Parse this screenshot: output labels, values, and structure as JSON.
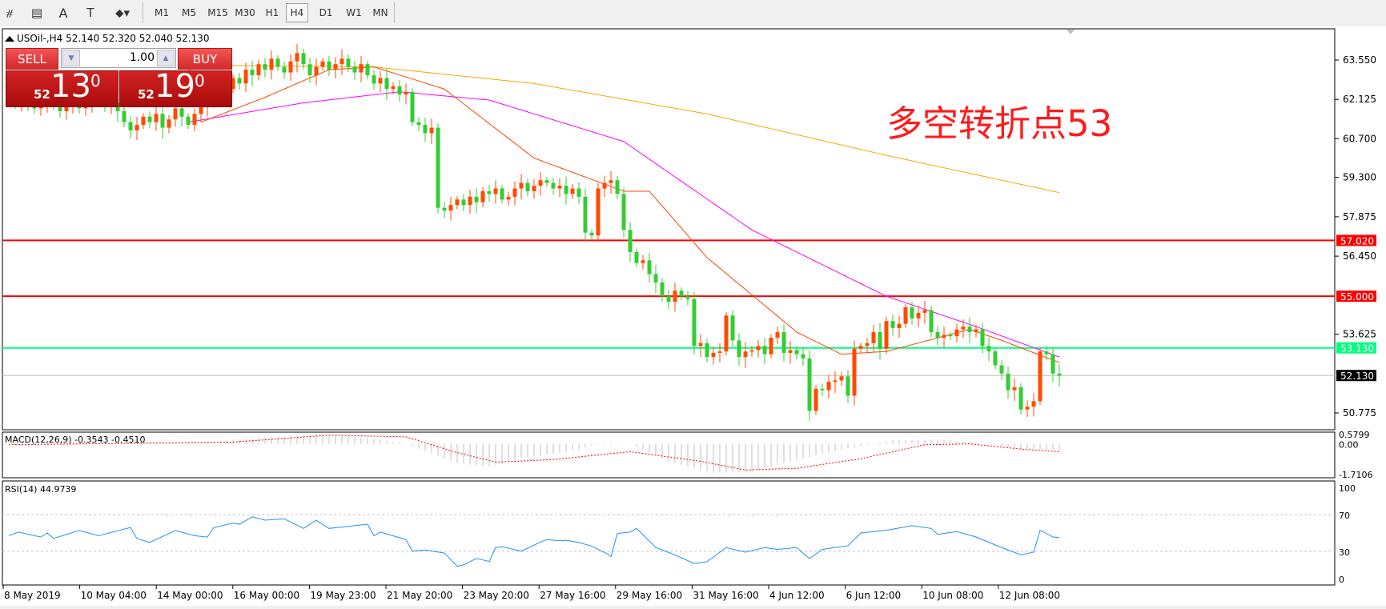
{
  "toolbar": {
    "tools": [
      {
        "name": "elliott-icon",
        "glyph": "⧣"
      },
      {
        "name": "fibonacci-icon",
        "glyph": "▤"
      },
      {
        "name": "text-icon",
        "glyph": "A"
      },
      {
        "name": "text-label-icon",
        "glyph": "T"
      },
      {
        "name": "arrows-icon",
        "glyph": "⬥▾"
      }
    ],
    "timeframes": [
      "M1",
      "M5",
      "M15",
      "M30",
      "H1",
      "H4",
      "D1",
      "W1",
      "MN"
    ],
    "active_timeframe": "H4"
  },
  "chart_header": "USOil-,H4  52.140 52.320 52.040 52.130",
  "trade_panel": {
    "sell_label": "SELL",
    "buy_label": "BUY",
    "lot": "1.00",
    "sell_price": {
      "big": "52",
      "main": "13",
      "sup": "0"
    },
    "buy_price": {
      "big": "52",
      "main": "19",
      "sup": "0"
    }
  },
  "annotation": "多空转折点53",
  "colors": {
    "bull": "#ff4a00",
    "bear": "#32cd32",
    "ma_slow": "#ffa500",
    "ma_mid": "#ff00ff",
    "ma_fast": "#ff4500",
    "level_red": "#ff0000",
    "level_green": "#00ff7f",
    "macd_hist": "#c0c0c0",
    "macd_signal": "#ff0000",
    "rsi": "#1e90ff"
  },
  "chart_data": {
    "type": "candlestick",
    "price_axis": {
      "ticks": [
        "63.550",
        "62.125",
        "60.700",
        "59.300",
        "57.875",
        "56.450",
        "53.625",
        "50.775"
      ],
      "range": [
        50.775,
        63.55
      ]
    },
    "closes": [
      62.2,
      62.0,
      62.3,
      62.1,
      61.8,
      62.0,
      62.2,
      61.9,
      61.7,
      62.0,
      62.1,
      61.8,
      62.0,
      62.3,
      62.1,
      61.9,
      62.0,
      61.7,
      61.3,
      61.0,
      61.2,
      61.5,
      61.3,
      61.6,
      61.1,
      61.4,
      61.8,
      61.5,
      61.2,
      61.6,
      61.9,
      62.0,
      62.4,
      62.2,
      62.5,
      62.9,
      62.7,
      63.2,
      63.0,
      63.4,
      63.2,
      63.6,
      63.3,
      63.1,
      63.5,
      63.8,
      63.4,
      63.0,
      63.3,
      63.5,
      63.2,
      63.4,
      63.6,
      63.3,
      63.1,
      63.4,
      63.0,
      62.7,
      62.9,
      62.5,
      62.6,
      62.3,
      62.4,
      61.3,
      61.2,
      60.9,
      61.1,
      58.2,
      58.1,
      58.3,
      58.5,
      58.3,
      58.6,
      58.4,
      58.8,
      58.7,
      58.9,
      58.5,
      58.6,
      58.9,
      59.1,
      58.8,
      59.0,
      59.2,
      59.1,
      58.9,
      59.0,
      58.7,
      58.9,
      58.6,
      57.3,
      57.2,
      58.9,
      59.1,
      59.2,
      58.7,
      57.4,
      56.6,
      56.2,
      56.3,
      55.8,
      55.5,
      55.0,
      54.8,
      55.2,
      55.0,
      54.9,
      53.2,
      53.3,
      52.8,
      52.95,
      53.0,
      54.3,
      53.4,
      52.8,
      53.0,
      53.05,
      53.2,
      52.9,
      53.5,
      53.7,
      52.95,
      53.05,
      52.9,
      52.75,
      50.85,
      51.65,
      51.6,
      51.9,
      51.95,
      52.1,
      51.4,
      53.1,
      53.2,
      53.3,
      53.7,
      53.1,
      54.1,
      53.85,
      54.0,
      54.6,
      54.2,
      54.4,
      54.5,
      53.7,
      53.5,
      53.6,
      53.55,
      53.8,
      53.9,
      53.7,
      53.8,
      53.2,
      53.0,
      52.5,
      52.2,
      51.6,
      51.7,
      50.9,
      51.0,
      51.2,
      53.0,
      52.9,
      52.2,
      52.13
    ],
    "moving_averages": [
      {
        "color_key": "ma_slow",
        "points": [
          [
            28,
            63.2
          ],
          [
            35,
            63.35
          ],
          [
            57,
            63.3
          ],
          [
            82,
            62.7
          ],
          [
            109,
            61.6
          ],
          [
            137,
            60.1
          ],
          [
            164,
            58.75
          ]
        ]
      },
      {
        "color_key": "ma_mid",
        "points": [
          [
            28,
            61.3
          ],
          [
            46,
            62.0
          ],
          [
            61,
            62.4
          ],
          [
            75,
            62.1
          ],
          [
            96,
            60.6
          ],
          [
            116,
            57.4
          ],
          [
            137,
            55.0
          ],
          [
            151,
            53.9
          ],
          [
            164,
            52.8
          ]
        ]
      },
      {
        "color_key": "ma_fast",
        "points": [
          [
            30,
            61.3
          ],
          [
            40,
            62.2
          ],
          [
            50,
            63.2
          ],
          [
            57,
            63.3
          ],
          [
            68,
            62.5
          ],
          [
            82,
            60.0
          ],
          [
            96,
            58.8
          ],
          [
            100,
            58.8
          ],
          [
            109,
            56.4
          ],
          [
            123,
            53.7
          ],
          [
            130,
            52.9
          ],
          [
            137,
            53.0
          ],
          [
            150,
            53.8
          ],
          [
            155,
            53.4
          ],
          [
            164,
            52.6
          ]
        ]
      }
    ],
    "levels": [
      {
        "value": 57.02,
        "label": "57.020",
        "color_key": "level_red",
        "text_color": "#ffffff"
      },
      {
        "value": 55.0,
        "label": "55.000",
        "color_key": "level_red",
        "text_color": "#ffffff"
      },
      {
        "value": 53.13,
        "label": "53.130",
        "color_key": "level_green",
        "text_color": "#ffffff"
      },
      {
        "value": 52.13,
        "label": "52.130",
        "color": "#c0c0c0",
        "label_bg": "#000000",
        "text_color": "#ffffff"
      }
    ],
    "macd": {
      "label": "MACD(12,26,9) -0.3543 -0.4510",
      "axis": [
        "0.5799",
        "0.00",
        "-1.7106"
      ],
      "range": [
        -1.7106,
        0.5799
      ],
      "histogram_points": [
        [
          0,
          0.05
        ],
        [
          20,
          0.05
        ],
        [
          30,
          0.1
        ],
        [
          40,
          0.35
        ],
        [
          48,
          0.55
        ],
        [
          56,
          0.35
        ],
        [
          62,
          0.0
        ],
        [
          70,
          -1.1
        ],
        [
          75,
          -1.3
        ],
        [
          80,
          -0.8
        ],
        [
          88,
          -0.4
        ],
        [
          93,
          0.05
        ],
        [
          97,
          0.0
        ],
        [
          103,
          -1.0
        ],
        [
          110,
          -1.65
        ],
        [
          116,
          -1.6
        ],
        [
          122,
          -1.0
        ],
        [
          128,
          -0.5
        ],
        [
          133,
          -0.1
        ],
        [
          138,
          0.2
        ],
        [
          146,
          0.25
        ],
        [
          152,
          0.0
        ],
        [
          158,
          -0.3
        ],
        [
          164,
          -0.35
        ]
      ],
      "signal_points": [
        [
          0,
          -0.05
        ],
        [
          35,
          0.1
        ],
        [
          50,
          0.5
        ],
        [
          62,
          0.4
        ],
        [
          70,
          -0.5
        ],
        [
          76,
          -1.05
        ],
        [
          85,
          -0.9
        ],
        [
          97,
          -0.45
        ],
        [
          108,
          -1.0
        ],
        [
          115,
          -1.5
        ],
        [
          123,
          -1.4
        ],
        [
          133,
          -0.85
        ],
        [
          143,
          -0.05
        ],
        [
          150,
          0.0
        ],
        [
          158,
          -0.3
        ],
        [
          164,
          -0.45
        ]
      ]
    },
    "rsi": {
      "label": "RSI(14) 44.9739",
      "axis": [
        "100",
        "70",
        "30",
        "0"
      ],
      "levels": [
        70,
        30
      ],
      "points": [
        [
          0,
          47
        ],
        [
          1.5,
          51
        ],
        [
          5,
          45.5
        ],
        [
          6,
          50
        ],
        [
          7,
          44
        ],
        [
          11,
          52.7
        ],
        [
          14,
          47
        ],
        [
          19,
          56
        ],
        [
          20,
          44
        ],
        [
          22,
          39.6
        ],
        [
          26,
          52.7
        ],
        [
          29,
          47
        ],
        [
          31,
          45.5
        ],
        [
          32,
          56
        ],
        [
          35,
          60.7
        ],
        [
          36,
          59.6
        ],
        [
          38,
          67.6
        ],
        [
          40,
          64
        ],
        [
          43,
          65.5
        ],
        [
          46,
          55
        ],
        [
          48,
          64
        ],
        [
          50,
          55
        ],
        [
          54,
          58
        ],
        [
          56,
          59.6
        ],
        [
          57,
          47
        ],
        [
          58,
          51
        ],
        [
          62,
          42.8
        ],
        [
          63,
          30
        ],
        [
          65,
          31.5
        ],
        [
          68,
          28
        ],
        [
          70,
          13.5
        ],
        [
          71,
          15
        ],
        [
          73,
          22
        ],
        [
          75,
          18.8
        ],
        [
          76,
          34
        ],
        [
          77,
          35
        ],
        [
          80,
          30
        ],
        [
          83,
          40
        ],
        [
          84,
          42.8
        ],
        [
          86,
          41.5
        ],
        [
          87,
          42
        ],
        [
          89,
          39.6
        ],
        [
          91,
          35.6
        ],
        [
          93.5,
          26.8
        ],
        [
          94,
          24
        ],
        [
          95,
          49.5
        ],
        [
          97,
          51
        ],
        [
          98,
          55
        ],
        [
          101,
          34
        ],
        [
          104,
          26
        ],
        [
          107,
          16.5
        ],
        [
          109,
          18.5
        ],
        [
          112,
          34
        ],
        [
          115,
          29
        ],
        [
          118,
          34
        ],
        [
          120,
          32
        ],
        [
          123,
          34
        ],
        [
          125,
          22
        ],
        [
          127,
          32
        ],
        [
          131,
          36
        ],
        [
          133,
          50
        ],
        [
          137,
          53
        ],
        [
          141,
          58
        ],
        [
          144,
          55
        ],
        [
          145,
          48.5
        ],
        [
          148,
          51.5
        ],
        [
          151,
          45.6
        ],
        [
          155,
          34
        ],
        [
          158,
          26
        ],
        [
          160,
          29
        ],
        [
          161,
          53
        ],
        [
          163,
          45.6
        ],
        [
          164,
          45
        ]
      ]
    },
    "time_axis": [
      "8 May 2019",
      "10 May 04:00",
      "14 May 00:00",
      "16 May 00:00",
      "19 May 23:00",
      "21 May 20:00",
      "23 May 20:00",
      "27 May 16:00",
      "29 May 16:00",
      "31 May 16:00",
      "4 Jun 12:00",
      "6 Jun 12:00",
      "10 Jun 08:00",
      "12 Jun 08:00"
    ]
  }
}
